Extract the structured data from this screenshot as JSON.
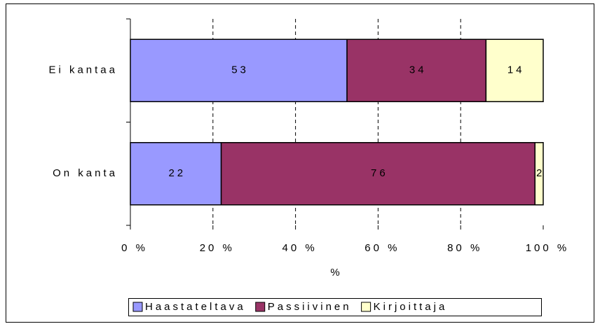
{
  "chart_data": {
    "type": "bar",
    "orientation": "horizontal",
    "stacking": "percent",
    "categories": [
      "Ei kantaa",
      "On kanta"
    ],
    "series": [
      {
        "name": "Haastateltava",
        "color": "#9999ff",
        "values": [
          53,
          22
        ]
      },
      {
        "name": "Passiivinen",
        "color": "#993366",
        "values": [
          34,
          76
        ]
      },
      {
        "name": "Kirjoittaja",
        "color": "#ffffcc",
        "values": [
          14,
          2
        ]
      }
    ],
    "xlabel": "%",
    "xlim": [
      0,
      100
    ],
    "xticks": [
      {
        "value": 0,
        "label": "0 %"
      },
      {
        "value": 20,
        "label": "20 %"
      },
      {
        "value": 40,
        "label": "40 %"
      },
      {
        "value": 60,
        "label": "60 %"
      },
      {
        "value": 80,
        "label": "80 %"
      },
      {
        "value": 100,
        "label": "100 %"
      }
    ],
    "grid": true,
    "legend": "bottom"
  }
}
